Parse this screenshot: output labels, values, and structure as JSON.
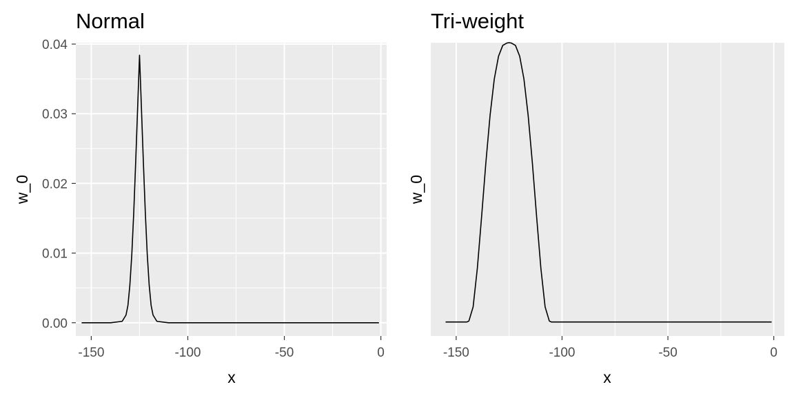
{
  "chart_data": [
    {
      "type": "line",
      "title": "Normal",
      "xlabel": "x",
      "ylabel": "w_0",
      "xlim": [
        -158,
        3
      ],
      "ylim": [
        -0.0019,
        0.0402
      ],
      "x_ticks": [
        -150,
        -100,
        -50,
        0
      ],
      "x_tick_labels": [
        "-150",
        "-100",
        "-50",
        "0"
      ],
      "y_ticks": [
        0.0,
        0.01,
        0.02,
        0.03,
        0.04
      ],
      "y_tick_labels": [
        "0.00",
        "0.01",
        "0.02",
        "0.03",
        "0.04"
      ],
      "y_tick_labels_visible": true,
      "grid": true,
      "panel_color": "#ebebeb",
      "line_color": "#000000",
      "series": [
        {
          "x": [
            -155,
            -140,
            -134,
            -132,
            -131,
            -130,
            -129,
            -128,
            -127,
            -126,
            -125,
            -124,
            -123,
            -122,
            -121,
            -120,
            -119,
            -118,
            -116,
            -110,
            -50,
            -1
          ],
          "values": [
            0,
            0,
            0.0002,
            0.0011,
            0.0025,
            0.0054,
            0.0098,
            0.0158,
            0.023,
            0.0307,
            0.0384,
            0.0307,
            0.023,
            0.0158,
            0.0098,
            0.0054,
            0.0025,
            0.0011,
            0.0002,
            0,
            0,
            0
          ]
        }
      ]
    },
    {
      "type": "line",
      "title": "Tri-weight",
      "xlabel": "x",
      "ylabel": "w_0",
      "xlim": [
        -162,
        5
      ],
      "ylim": [
        -0.05,
        1.0
      ],
      "x_ticks": [
        -150,
        -100,
        -50,
        0
      ],
      "x_tick_labels": [
        "-150",
        "-100",
        "-50",
        "0"
      ],
      "y_ticks": [],
      "y_tick_labels": [],
      "y_tick_labels_visible": false,
      "grid": true,
      "panel_color": "#ebebeb",
      "line_color": "#000000",
      "series": [
        {
          "x": [
            -155,
            -145,
            -144,
            -142,
            -140,
            -138,
            -136,
            -134,
            -132,
            -130,
            -128,
            -126,
            -125,
            -124,
            -122,
            -120,
            -118,
            -116,
            -114,
            -112,
            -110,
            -108,
            -106,
            -105,
            -90,
            -50,
            -1
          ],
          "values": [
            0,
            0,
            0.0034,
            0.0541,
            0.1927,
            0.3763,
            0.5683,
            0.7393,
            0.87,
            0.9515,
            0.9903,
            0.999,
            1.0,
            0.999,
            0.9903,
            0.9515,
            0.87,
            0.7393,
            0.5683,
            0.3763,
            0.1927,
            0.0541,
            0.0034,
            0,
            0,
            0,
            0
          ]
        }
      ]
    }
  ]
}
